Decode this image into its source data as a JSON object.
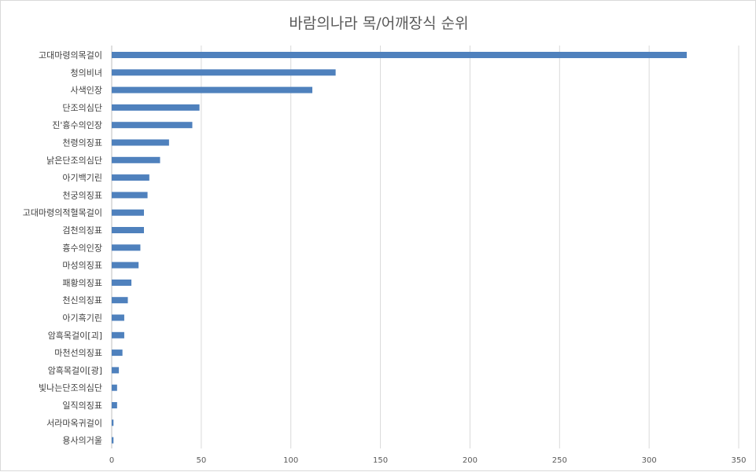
{
  "chart_data": {
    "type": "bar",
    "orientation": "horizontal",
    "title": "바람의나라 목/어깨장식 순위",
    "xlabel": "",
    "ylabel": "",
    "xlim": [
      0,
      350
    ],
    "x_ticks": [
      "0",
      "50",
      "100",
      "150",
      "200",
      "250",
      "300",
      "350"
    ],
    "grid": true,
    "legend": "none",
    "bar_color": "#4f81bd",
    "categories": [
      "고대마령의목걸이",
      "청의비녀",
      "사색인장",
      "단조의심단",
      "진'흉수의인장",
      "천령의징표",
      "낡은단조의심단",
      "아기백기린",
      "천궁의징표",
      "고대마령의적혈목걸이",
      "검천의징표",
      "흉수의인장",
      "마성의징표",
      "패황의징표",
      "천신의징표",
      "아기흑기린",
      "암흑목걸이[괴]",
      "마천선의징표",
      "암흑목걸이[광]",
      "빛나는단조의심단",
      "일직의징표",
      "서라마옥귀걸이",
      "용사의거울"
    ],
    "values": [
      321,
      125,
      112,
      49,
      45,
      32,
      27,
      21,
      20,
      18,
      18,
      16,
      15,
      11,
      9,
      7,
      7,
      6,
      4,
      3,
      3,
      1,
      1
    ]
  }
}
